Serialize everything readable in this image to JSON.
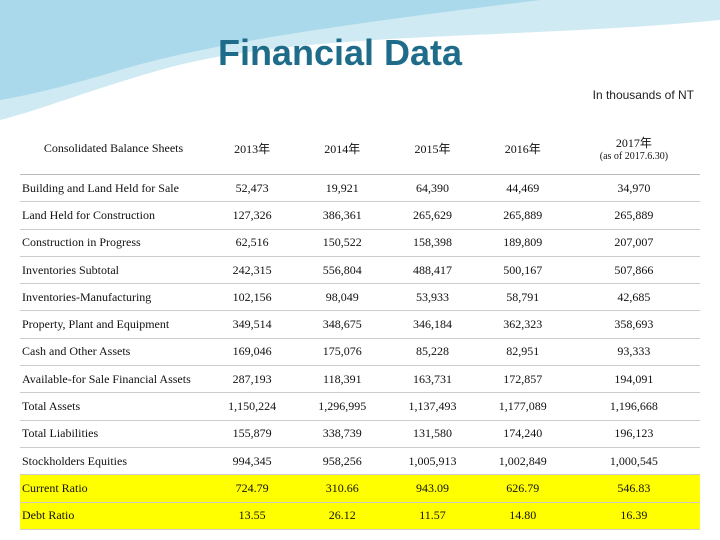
{
  "header": {
    "title": "Financial Data",
    "subtitle": "In thousands of NT"
  },
  "table": {
    "columns": [
      "Consolidated Balance Sheets",
      "2013年",
      "2014年",
      "2015年",
      "2016年",
      "2017年"
    ],
    "column_note": "(as of 2017.6.30)",
    "rows": [
      {
        "label": "Building and Land Held for Sale",
        "values": [
          "52,473",
          "19,921",
          "64,390",
          "44,469",
          "34,970"
        ]
      },
      {
        "label": "Land Held for Construction",
        "values": [
          "127,326",
          "386,361",
          "265,629",
          "265,889",
          "265,889"
        ]
      },
      {
        "label": "Construction in Progress",
        "values": [
          "62,516",
          "150,522",
          "158,398",
          "189,809",
          "207,007"
        ]
      },
      {
        "label": "Inventories Subtotal",
        "values": [
          "242,315",
          "556,804",
          "488,417",
          "500,167",
          "507,866"
        ]
      },
      {
        "label": "Inventories-Manufacturing",
        "values": [
          "102,156",
          "98,049",
          "53,933",
          "58,791",
          "42,685"
        ]
      },
      {
        "label": "Property, Plant and Equipment",
        "values": [
          "349,514",
          "348,675",
          "346,184",
          "362,323",
          "358,693"
        ]
      },
      {
        "label": "Cash and Other Assets",
        "values": [
          "169,046",
          "175,076",
          "85,228",
          "82,951",
          "93,333"
        ]
      },
      {
        "label": "Available-for Sale Financial Assets",
        "values": [
          "287,193",
          "118,391",
          "163,731",
          "172,857",
          "194,091"
        ]
      },
      {
        "label": "Total Assets",
        "values": [
          "1,150,224",
          "1,296,995",
          "1,137,493",
          "1,177,089",
          "1,196,668"
        ]
      },
      {
        "label": "Total Liabilities",
        "values": [
          "155,879",
          "338,739",
          "131,580",
          "174,240",
          "196,123"
        ]
      },
      {
        "label": "Stockholders Equities",
        "values": [
          "994,345",
          "958,256",
          "1,005,913",
          "1,002,849",
          "1,000,545"
        ]
      },
      {
        "label": "Current Ratio",
        "values": [
          "724.79",
          "310.66",
          "943.09",
          "626.79",
          "546.83"
        ]
      },
      {
        "label": "Debt Ratio",
        "values": [
          "13.55",
          "26.12",
          "11.57",
          "14.80",
          "16.39"
        ]
      }
    ]
  }
}
